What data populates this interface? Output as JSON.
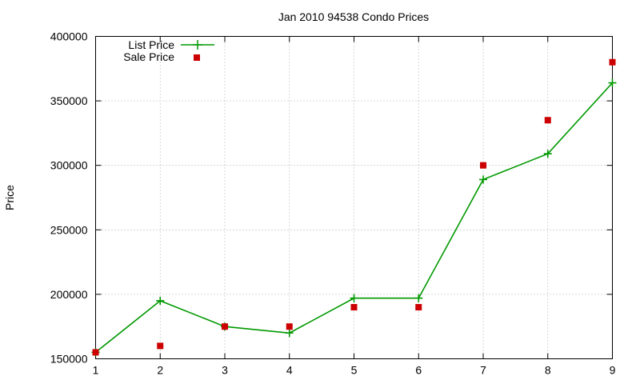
{
  "chart_data": {
    "type": "line",
    "title": "Jan 2010 94538 Condo Prices",
    "xlabel": "",
    "ylabel": "Price",
    "xlim": [
      1,
      9
    ],
    "ylim": [
      150000,
      400000
    ],
    "x_ticks": [
      1,
      2,
      3,
      4,
      5,
      6,
      7,
      8,
      9
    ],
    "y_ticks": [
      150000,
      200000,
      250000,
      300000,
      350000,
      400000
    ],
    "grid": true,
    "legend_position": "top-left",
    "series": [
      {
        "name": "List Price",
        "style": "line-with-plus-markers",
        "color": "#009900",
        "x": [
          1,
          2,
          3,
          4,
          5,
          6,
          7,
          8,
          9
        ],
        "values": [
          155000,
          195000,
          175000,
          170000,
          197000,
          197000,
          289000,
          309000,
          364000
        ]
      },
      {
        "name": "Sale Price",
        "style": "square-markers",
        "color": "#cc0000",
        "x": [
          1,
          2,
          3,
          4,
          5,
          6,
          7,
          8,
          9
        ],
        "values": [
          155000,
          160000,
          175000,
          175000,
          190000,
          190000,
          300000,
          335000,
          380000
        ]
      }
    ]
  }
}
